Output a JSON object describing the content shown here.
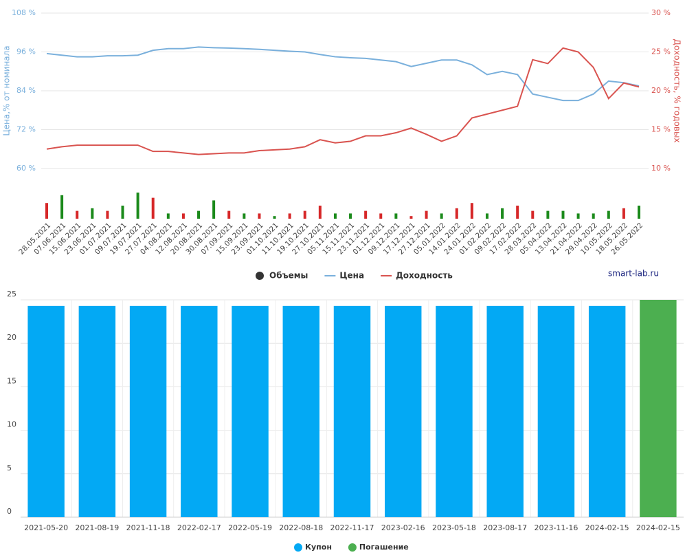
{
  "chart_data": [
    {
      "type": "line",
      "categories": [
        "28.05.2021",
        "07.06.2021",
        "15.06.2021",
        "23.06.2021",
        "01.07.2021",
        "09.07.2021",
        "19.07.2021",
        "27.07.2021",
        "04.08.2021",
        "12.08.2021",
        "20.08.2021",
        "30.08.2021",
        "07.09.2021",
        "15.09.2021",
        "23.09.2021",
        "01.10.2021",
        "11.10.2021",
        "19.10.2021",
        "27.10.2021",
        "05.11.2021",
        "15.11.2021",
        "23.11.2021",
        "01.12.2021",
        "09.12.2021",
        "17.12.2021",
        "27.12.2021",
        "05.01.2022",
        "14.01.2022",
        "24.01.2022",
        "01.02.2022",
        "09.02.2022",
        "17.02.2022",
        "28.03.2022",
        "05.04.2022",
        "13.04.2022",
        "21.04.2022",
        "29.04.2022",
        "10.05.2022",
        "18.05.2022",
        "26.05.2022"
      ],
      "y_label": "Цена,% от номинала",
      "y2_label": "Доходность, % годовых",
      "ylim": [
        60,
        108
      ],
      "yticks": [
        {
          "value": 60,
          "label": "60 %"
        },
        {
          "value": 72,
          "label": "72 %"
        },
        {
          "value": 84,
          "label": "84 %"
        },
        {
          "value": 96,
          "label": "96 %"
        },
        {
          "value": 108,
          "label": "108 %"
        }
      ],
      "y2lim": [
        10,
        30
      ],
      "y2ticks": [
        {
          "value": 10,
          "label": "10 %"
        },
        {
          "value": 15,
          "label": "15 %"
        },
        {
          "value": 20,
          "label": "20 %"
        },
        {
          "value": 25,
          "label": "25 %"
        },
        {
          "value": 30,
          "label": "30 %"
        }
      ],
      "grid": true,
      "series": [
        {
          "name": "Объемы",
          "color": "#333333",
          "type": "bar",
          "bar_colors_up": "#1b8a1b",
          "bar_colors_down": "#d62728",
          "values": [
            6,
            9,
            3,
            4,
            3,
            5,
            10,
            8,
            2,
            2,
            3,
            7,
            3,
            2,
            2,
            1,
            2,
            3,
            5,
            2,
            2,
            3,
            2,
            2,
            1,
            3,
            2,
            4,
            6,
            2,
            4,
            5,
            3,
            3,
            3,
            2,
            2,
            3,
            4,
            5
          ],
          "directions": [
            "down",
            "up",
            "down",
            "up",
            "down",
            "up",
            "up",
            "down",
            "up",
            "down",
            "up",
            "up",
            "down",
            "up",
            "down",
            "up",
            "down",
            "down",
            "down",
            "up",
            "up",
            "down",
            "down",
            "up",
            "down",
            "down",
            "up",
            "down",
            "down",
            "up",
            "up",
            "down",
            "down",
            "up",
            "up",
            "up",
            "up",
            "up",
            "down",
            "up"
          ]
        },
        {
          "name": "Цена",
          "color": "#7ab0dc",
          "values": [
            95.5,
            95,
            94.5,
            94.5,
            94.8,
            94.8,
            95,
            96.5,
            97,
            97,
            97.5,
            97.3,
            97.2,
            97,
            96.8,
            96.5,
            96.2,
            96,
            95.2,
            94.5,
            94.2,
            94,
            93.5,
            93,
            91.5,
            92.5,
            93.5,
            93.5,
            92,
            89,
            90,
            89,
            83,
            82,
            81,
            81,
            83,
            87,
            86.5,
            85.5
          ]
        },
        {
          "name": "Доходность",
          "color": "#d9534f",
          "axis": "y2",
          "values": [
            12.5,
            12.8,
            13,
            13,
            13,
            13,
            13,
            12.2,
            12.2,
            12,
            11.8,
            11.9,
            12,
            12,
            12.3,
            12.4,
            12.5,
            12.8,
            13.7,
            13.3,
            13.5,
            14.2,
            14.2,
            14.6,
            15.2,
            14.4,
            13.5,
            14.2,
            16.5,
            17,
            17.5,
            18,
            24,
            23.5,
            25.5,
            25,
            23,
            19,
            21,
            20.5
          ]
        }
      ],
      "watermark": "smart-lab.ru"
    },
    {
      "type": "bar",
      "categories": [
        "2021-05-20",
        "2021-08-19",
        "2021-11-18",
        "2022-02-17",
        "2022-05-19",
        "2022-08-18",
        "2022-11-17",
        "2023-02-16",
        "2023-05-18",
        "2023-08-17",
        "2023-11-16",
        "2024-02-15",
        "2024-02-15"
      ],
      "ylim": [
        0,
        25
      ],
      "yticks": [
        0,
        5,
        10,
        15,
        20,
        25
      ],
      "grid": true,
      "series": [
        {
          "name": "Купон",
          "color": "#03a9f4",
          "values": [
            24.3,
            24.3,
            24.3,
            24.3,
            24.3,
            24.3,
            24.3,
            24.3,
            24.3,
            24.3,
            24.3,
            24.3,
            null
          ]
        },
        {
          "name": "Погашение",
          "color": "#4caf50",
          "values": [
            null,
            null,
            null,
            null,
            null,
            null,
            null,
            null,
            null,
            null,
            null,
            null,
            25
          ]
        }
      ]
    }
  ]
}
